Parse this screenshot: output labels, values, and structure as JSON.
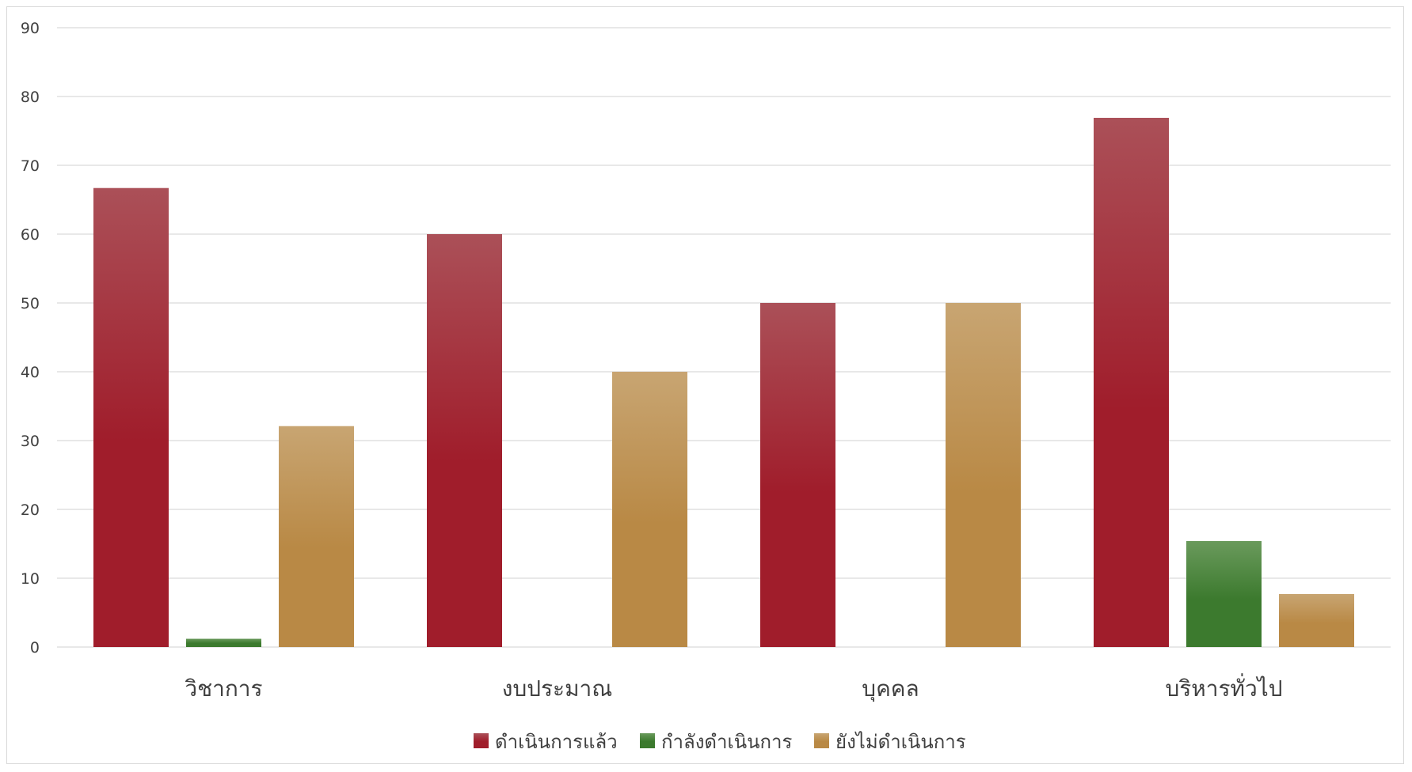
{
  "chart_data": {
    "type": "bar",
    "title": "",
    "xlabel": "",
    "ylabel": "",
    "ylim": [
      0,
      90
    ],
    "yticks": [
      0,
      10,
      20,
      30,
      40,
      50,
      60,
      70,
      80,
      90
    ],
    "grid": true,
    "legend_position": "bottom",
    "categories": [
      "วิชาการ",
      "งบประมาณ",
      "บุคคล",
      "บริหารทั่วไป"
    ],
    "series": [
      {
        "name": "ดำเนินการแล้ว",
        "values": [
          66.7,
          60,
          50,
          76.9
        ],
        "color": "#a01d2b",
        "color_top": "#ab5058"
      },
      {
        "name": "กำลังดำเนินการ",
        "values": [
          1.2,
          0,
          0,
          15.4
        ],
        "color": "#3c7a2e",
        "color_top": "#6a9a5c"
      },
      {
        "name": "ยังไม่ดำเนินการ",
        "values": [
          32.1,
          40,
          50,
          7.7
        ],
        "color": "#b98945",
        "color_top": "#c8a572"
      }
    ]
  }
}
